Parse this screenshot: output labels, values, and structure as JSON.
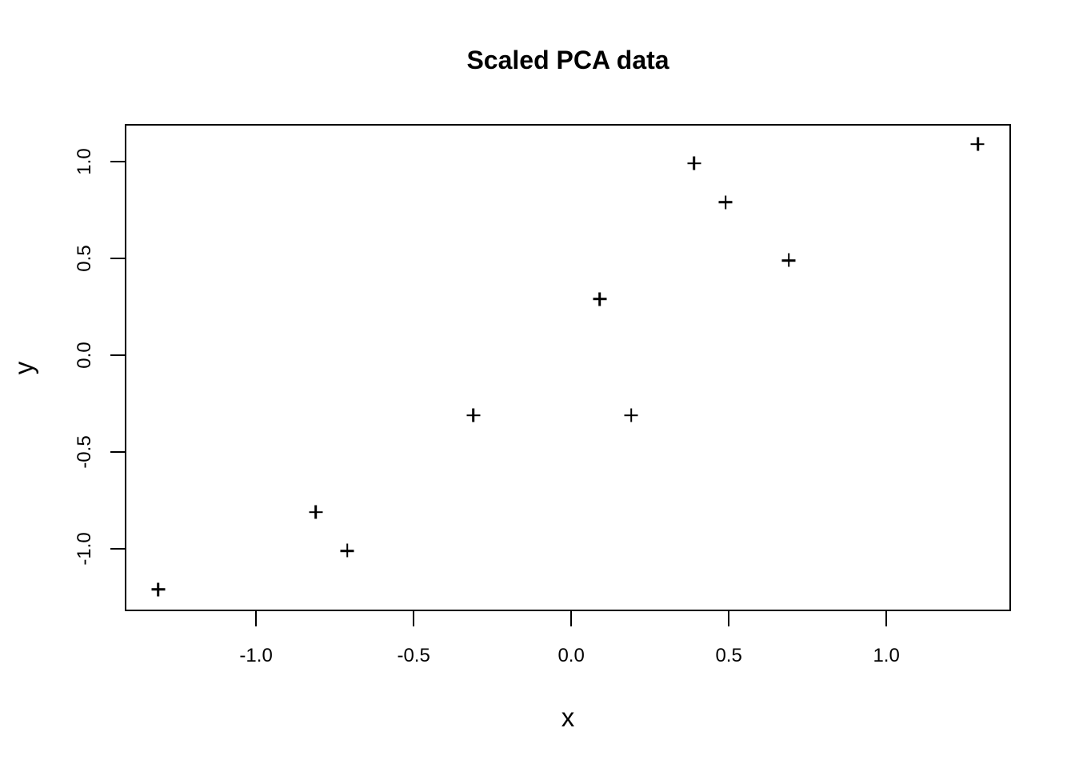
{
  "chart_data": {
    "type": "scatter",
    "title": "Scaled PCA data",
    "xlabel": "x",
    "ylabel": "y",
    "marker": "plus",
    "marker_color": "#000000",
    "background_color": "#ffffff",
    "grid": false,
    "legend": false,
    "xlim": [
      -1.414,
      1.393
    ],
    "ylim": [
      -1.318,
      1.19
    ],
    "x_ticks": [
      -1.0,
      -0.5,
      0.0,
      0.5,
      1.0
    ],
    "y_ticks": [
      -1.0,
      -0.5,
      0.0,
      0.5,
      1.0
    ],
    "x_tick_labels": [
      "-1.0",
      "-0.5",
      "0.0",
      "0.5",
      "1.0"
    ],
    "y_tick_labels": [
      "-1.0",
      "-0.5",
      "0.0",
      "0.5",
      "1.0"
    ],
    "points": [
      {
        "x": 0.69,
        "y": 0.49
      },
      {
        "x": -1.31,
        "y": -1.21
      },
      {
        "x": 0.39,
        "y": 0.99
      },
      {
        "x": 0.09,
        "y": 0.29
      },
      {
        "x": 1.29,
        "y": 1.09
      },
      {
        "x": 0.49,
        "y": 0.79
      },
      {
        "x": 0.19,
        "y": -0.31
      },
      {
        "x": -0.81,
        "y": -0.81
      },
      {
        "x": -0.31,
        "y": -0.31
      },
      {
        "x": -0.71,
        "y": -1.01
      }
    ]
  }
}
